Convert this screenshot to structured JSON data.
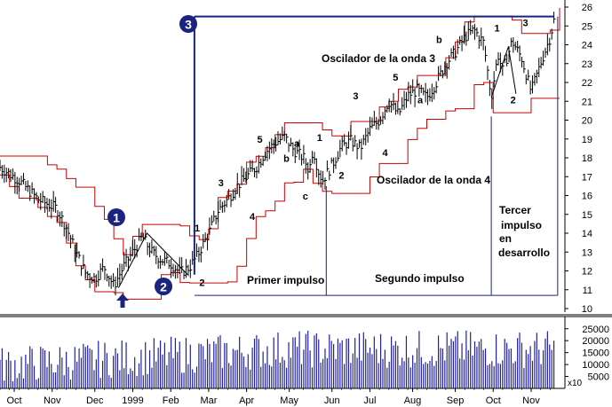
{
  "chart_data": [
    {
      "type": "line",
      "subtype": "candlestick-with-bands",
      "title": "",
      "xlabel": "",
      "ylabel": "",
      "ylim": [
        10,
        26
      ],
      "y_ticks": [
        10,
        11,
        12,
        13,
        14,
        15,
        16,
        17,
        18,
        19,
        20,
        21,
        22,
        23,
        24,
        25,
        26
      ],
      "y_axis_side": "right",
      "x_tick_labels": [
        "Oct",
        "Nov",
        "Dec",
        "1999",
        "Feb",
        "Mar",
        "Apr",
        "May",
        "Jun",
        "Jul",
        "Aug",
        "Sep",
        "Oct",
        "Nov"
      ],
      "x_tick_weeks": [
        1.5,
        5.5,
        10,
        14,
        18,
        22,
        26,
        30.5,
        35,
        39,
        43.5,
        48,
        52,
        56
      ],
      "x_range_weeks": [
        0,
        59
      ],
      "grid": false,
      "price_path": [
        [
          0,
          17.5
        ],
        [
          2,
          16.8
        ],
        [
          4,
          15.8
        ],
        [
          6,
          15.3
        ],
        [
          7,
          14.3
        ],
        [
          8,
          13.0
        ],
        [
          9,
          11.9
        ],
        [
          10,
          11.6
        ],
        [
          11,
          12.2
        ],
        [
          12,
          11.2
        ],
        [
          13,
          12.2
        ],
        [
          14,
          13.0
        ],
        [
          15,
          13.8
        ],
        [
          16,
          13.0
        ],
        [
          17,
          12.6
        ],
        [
          18,
          12.4
        ],
        [
          19,
          11.9
        ],
        [
          20,
          12.2
        ],
        [
          20.8,
          12.8
        ],
        [
          22,
          14.0
        ],
        [
          23,
          15.2
        ],
        [
          24,
          15.8
        ],
        [
          25,
          16.5
        ],
        [
          26,
          17.0
        ],
        [
          27,
          17.5
        ],
        [
          28,
          18.3
        ],
        [
          29,
          18.8
        ],
        [
          30,
          19.1
        ],
        [
          31,
          18.4
        ],
        [
          32,
          18.0
        ],
        [
          32.6,
          17.3
        ],
        [
          33,
          18.5
        ],
        [
          33.5,
          17.4
        ],
        [
          34,
          16.8
        ],
        [
          35,
          17.6
        ],
        [
          36,
          18.6
        ],
        [
          37,
          18.9
        ],
        [
          38,
          18.5
        ],
        [
          39,
          19.5
        ],
        [
          40,
          20.0
        ],
        [
          41,
          21.0
        ],
        [
          42,
          20.3
        ],
        [
          43,
          21.3
        ],
        [
          44,
          21.6
        ],
        [
          45,
          21.2
        ],
        [
          46,
          22.0
        ],
        [
          47,
          23.0
        ],
        [
          48,
          23.6
        ],
        [
          49,
          24.4
        ],
        [
          50,
          24.8
        ],
        [
          51,
          24.1
        ],
        [
          51.8,
          21.2
        ],
        [
          52.5,
          23.5
        ],
        [
          53,
          22.6
        ],
        [
          54,
          24.2
        ],
        [
          55,
          23.3
        ],
        [
          56,
          21.5
        ],
        [
          57,
          23.0
        ],
        [
          58,
          24.4
        ],
        [
          58.5,
          25.5
        ]
      ],
      "series": [
        {
          "name": "",
          "role": "price-bars-ohlc",
          "color": "#000000"
        },
        {
          "name": "",
          "role": "upper-band",
          "color": "#cc0000"
        },
        {
          "name": "",
          "role": "lower-band",
          "color": "#cc0000"
        }
      ],
      "annotations": {
        "circle_1": "1",
        "circle_2": "2",
        "circle_3": "3",
        "oscillator_wave3": "Oscilador de la onda 3",
        "oscillator_wave4": "Oscilador de la onda 4",
        "first_impulse": "Primer impulso",
        "second_impulse": "Segundo impulso",
        "third_impulse_1": "Tercer",
        "third_impulse_2": "impulso",
        "third_impulse_3": "en",
        "third_impulse_4": "desarrollo",
        "wave_labels": [
          {
            "text": "1",
            "x": 20.8,
            "y": 14.1
          },
          {
            "text": "2",
            "x": 21.3,
            "y": 11.2
          },
          {
            "text": "3",
            "x": 23.3,
            "y": 16.5
          },
          {
            "text": "4",
            "x": 26.6,
            "y": 14.7
          },
          {
            "text": "5",
            "x": 27.4,
            "y": 18.8
          },
          {
            "text": "a",
            "x": 31.3,
            "y": 18.6
          },
          {
            "text": "b",
            "x": 30.2,
            "y": 17.8
          },
          {
            "text": "c",
            "x": 32.2,
            "y": 15.8
          },
          {
            "text": "1",
            "x": 33.7,
            "y": 18.9
          },
          {
            "text": "2",
            "x": 36.0,
            "y": 16.9
          },
          {
            "text": "3",
            "x": 37.5,
            "y": 21.1
          },
          {
            "text": "4",
            "x": 40.6,
            "y": 18.1
          },
          {
            "text": "5",
            "x": 41.7,
            "y": 22.1
          },
          {
            "text": "a",
            "x": 44.3,
            "y": 20.9
          },
          {
            "text": "b",
            "x": 46.3,
            "y": 24.1
          },
          {
            "text": "1",
            "x": 52.4,
            "y": 24.7
          },
          {
            "text": "2",
            "x": 54.1,
            "y": 20.9
          },
          {
            "text": "3",
            "x": 55.4,
            "y": 25.0
          }
        ]
      }
    },
    {
      "type": "bar",
      "title": "",
      "xlabel": "",
      "ylabel": "",
      "ylim": [
        0,
        29000
      ],
      "y_ticks": [
        5000,
        10000,
        15000,
        20000,
        25000
      ],
      "y_tick_labels": [
        "5000",
        "10000",
        "15000",
        "20000",
        "25000"
      ],
      "y_multiplier_label": "x10",
      "y_axis_side": "right",
      "bar_color": "#2020a0",
      "volume_level": 15000,
      "volume_spread": 8000
    }
  ]
}
